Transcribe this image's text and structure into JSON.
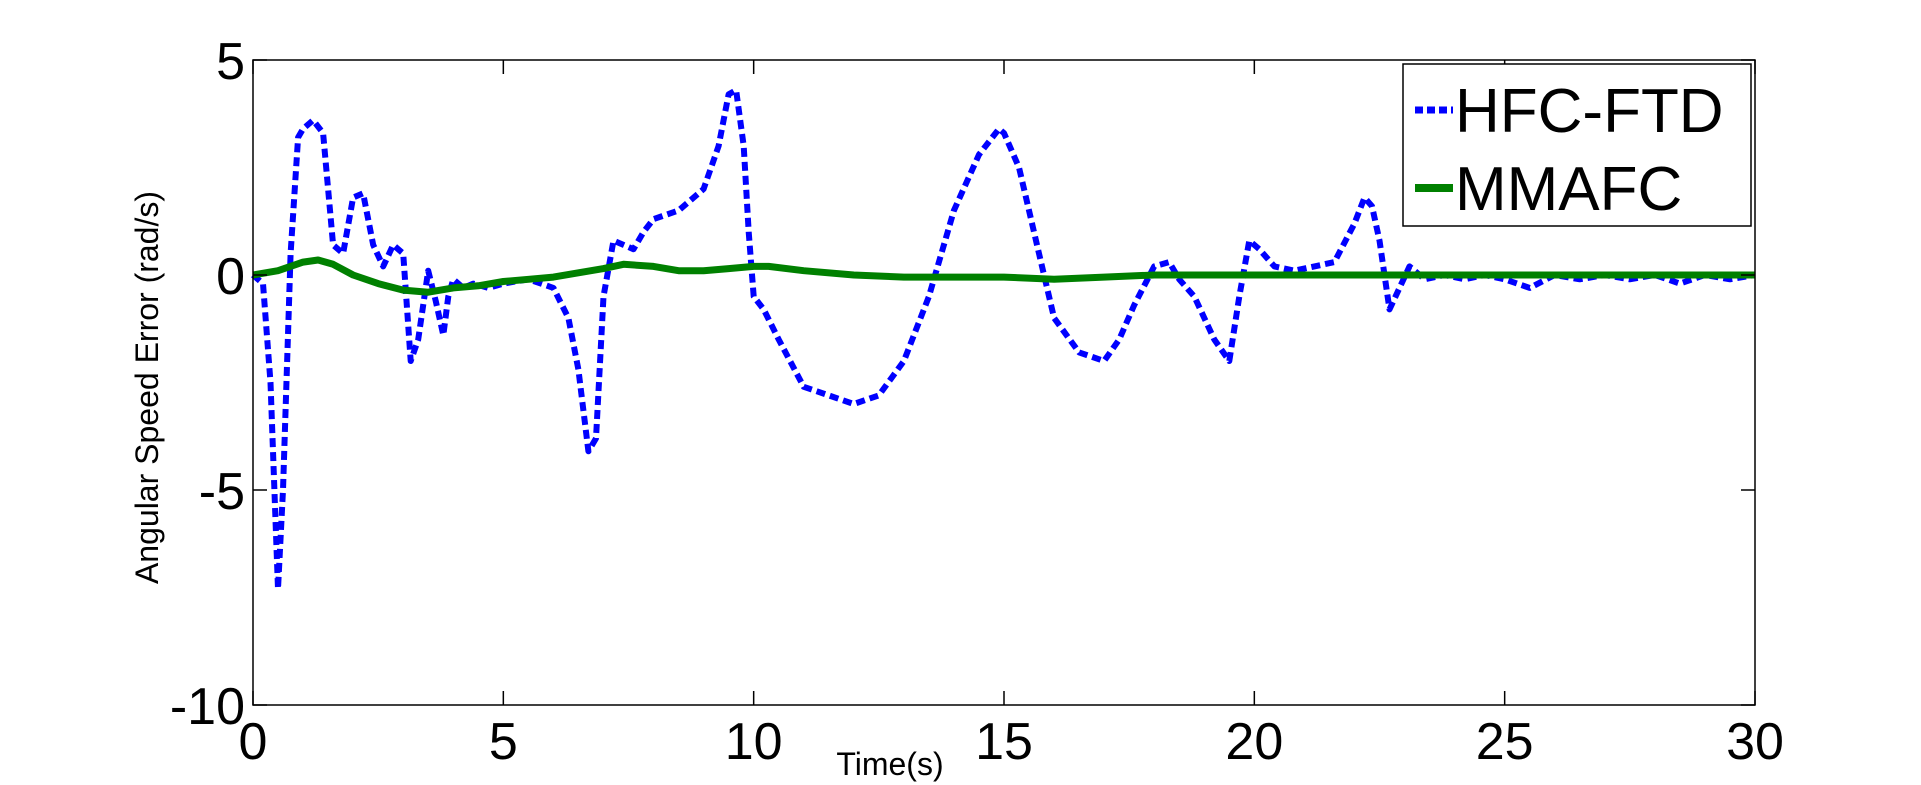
{
  "chart_data": {
    "type": "line",
    "xlabel": "Time(s)",
    "ylabel": "Angular Speed Error (rad/s)",
    "xlim": [
      0,
      30
    ],
    "ylim": [
      -10,
      5
    ],
    "xticks": [
      0,
      5,
      10,
      15,
      20,
      25,
      30
    ],
    "xtick_labels": [
      "0",
      "5",
      "10",
      "15",
      "20",
      "25",
      "30"
    ],
    "yticks": [
      -10,
      -5,
      0,
      5
    ],
    "ytick_labels": [
      "-10",
      "-5",
      "0",
      "5"
    ],
    "grid": false,
    "legend_position": "top-right",
    "series": [
      {
        "name": "HFC-FTD",
        "color": "#0000ff",
        "style": "dashed",
        "x": [
          0,
          0.2,
          0.35,
          0.5,
          0.6,
          0.75,
          0.9,
          1.0,
          1.2,
          1.4,
          1.6,
          1.8,
          2.0,
          2.2,
          2.4,
          2.6,
          2.8,
          3.0,
          3.15,
          3.3,
          3.5,
          3.65,
          3.8,
          3.9,
          4.0,
          4.2,
          4.4,
          4.7,
          5.0,
          5.5,
          6.0,
          6.3,
          6.5,
          6.7,
          6.85,
          7.0,
          7.2,
          7.4,
          7.6,
          7.8,
          8.0,
          8.5,
          9.0,
          9.3,
          9.5,
          9.65,
          9.8,
          9.9,
          10.0,
          10.2,
          10.5,
          11.0,
          11.5,
          12.0,
          12.5,
          13.0,
          13.5,
          14.0,
          14.5,
          14.9,
          15.0,
          15.3,
          15.7,
          16.0,
          16.5,
          17.0,
          17.3,
          17.6,
          18.0,
          18.3,
          18.5,
          18.8,
          19.2,
          19.5,
          19.7,
          19.9,
          20.1,
          20.4,
          20.8,
          21.2,
          21.6,
          22.0,
          22.2,
          22.35,
          22.5,
          22.7,
          22.9,
          23.1,
          23.4,
          23.8,
          24.2,
          24.6,
          25.0,
          25.5,
          26.0,
          26.5,
          27.0,
          27.5,
          28.0,
          28.5,
          29.0,
          29.5,
          30.0
        ],
        "y": [
          0,
          -0.2,
          -2.5,
          -7.3,
          -5.0,
          0.5,
          3.2,
          3.4,
          3.6,
          3.3,
          0.7,
          0.5,
          1.8,
          1.9,
          0.7,
          0.2,
          0.7,
          0.5,
          -2.0,
          -1.5,
          0.1,
          -0.6,
          -1.4,
          -0.5,
          -0.1,
          -0.3,
          -0.2,
          -0.3,
          -0.2,
          -0.1,
          -0.3,
          -1.0,
          -2.2,
          -4.1,
          -3.8,
          -0.5,
          0.8,
          0.7,
          0.6,
          1.0,
          1.3,
          1.5,
          2.0,
          3.0,
          4.2,
          4.3,
          3.0,
          1.0,
          -0.5,
          -0.8,
          -1.5,
          -2.6,
          -2.8,
          -3.0,
          -2.8,
          -2.0,
          -0.5,
          1.5,
          2.8,
          3.4,
          3.3,
          2.5,
          0.5,
          -1.0,
          -1.8,
          -2.0,
          -1.5,
          -0.7,
          0.2,
          0.3,
          -0.1,
          -0.5,
          -1.5,
          -2.0,
          -0.5,
          0.8,
          0.6,
          0.2,
          0.1,
          0.2,
          0.3,
          1.2,
          1.8,
          1.6,
          0.8,
          -0.8,
          -0.3,
          0.2,
          -0.1,
          0.0,
          -0.1,
          0.0,
          -0.1,
          -0.3,
          0.0,
          -0.1,
          0.0,
          -0.1,
          0.0,
          -0.2,
          0.0,
          -0.1,
          0.0
        ]
      },
      {
        "name": "MMAFC",
        "color": "#008000",
        "style": "solid",
        "x": [
          0,
          0.5,
          1.0,
          1.3,
          1.6,
          2.0,
          2.5,
          3.0,
          3.5,
          4.0,
          4.5,
          5.0,
          5.5,
          6.0,
          6.5,
          7.0,
          7.4,
          8.0,
          8.5,
          9.0,
          9.5,
          10.0,
          10.3,
          11.0,
          12.0,
          13.0,
          14.0,
          15.0,
          16.0,
          17.0,
          18.0,
          19.0,
          20.0,
          21.0,
          22.0,
          23.0,
          24.0,
          25.0,
          26.0,
          27.0,
          28.0,
          29.0,
          30.0
        ],
        "y": [
          0,
          0.1,
          0.3,
          0.35,
          0.25,
          0.0,
          -0.2,
          -0.35,
          -0.4,
          -0.3,
          -0.25,
          -0.15,
          -0.1,
          -0.05,
          0.05,
          0.15,
          0.25,
          0.2,
          0.1,
          0.1,
          0.15,
          0.2,
          0.2,
          0.1,
          0.0,
          -0.05,
          -0.05,
          -0.05,
          -0.1,
          -0.05,
          0.0,
          0.0,
          0.0,
          0.0,
          0.0,
          0.0,
          0.0,
          0.0,
          0.0,
          0.0,
          0.0,
          0.0,
          0.0
        ]
      }
    ]
  }
}
